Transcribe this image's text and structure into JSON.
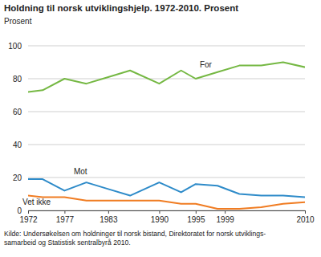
{
  "chart_data": {
    "type": "line",
    "title": "Holdning til norsk utviklingshjelp. 1972-2010. Prosent",
    "y_label": "Prosent",
    "source": [
      "Kilde: Undersøkelsen om holdninger til norsk bistand, Direktoratet for norsk utviklings-",
      "samarbeid og Statistisk sentralbyrå 2010."
    ],
    "x": [
      1972,
      1974,
      1977,
      1980,
      1983,
      1986,
      1990,
      1993,
      1995,
      1998,
      2001,
      2004,
      2007,
      2010
    ],
    "series": [
      {
        "name": "For",
        "color": "#75b843",
        "values": [
          72,
          73,
          80,
          77,
          81,
          85,
          77,
          85,
          80,
          84,
          88,
          88,
          90,
          87
        ]
      },
      {
        "name": "Mot",
        "color": "#2e8bc9",
        "values": [
          19,
          19,
          12,
          17,
          13,
          9,
          17,
          11,
          16,
          15,
          10,
          9,
          9,
          8
        ]
      },
      {
        "name": "Vet ikke",
        "color": "#f07c22",
        "values": [
          9,
          8,
          8,
          6,
          6,
          6,
          6,
          4,
          4,
          1,
          1,
          2,
          4,
          5
        ]
      }
    ],
    "xlim": [
      1972,
      2010
    ],
    "xticks": [
      1972,
      1977,
      1983,
      1990,
      1995,
      1999,
      2010
    ],
    "ylim": [
      0,
      100
    ],
    "yticks": [
      0,
      20,
      40,
      60,
      80,
      100
    ],
    "grid": true
  }
}
